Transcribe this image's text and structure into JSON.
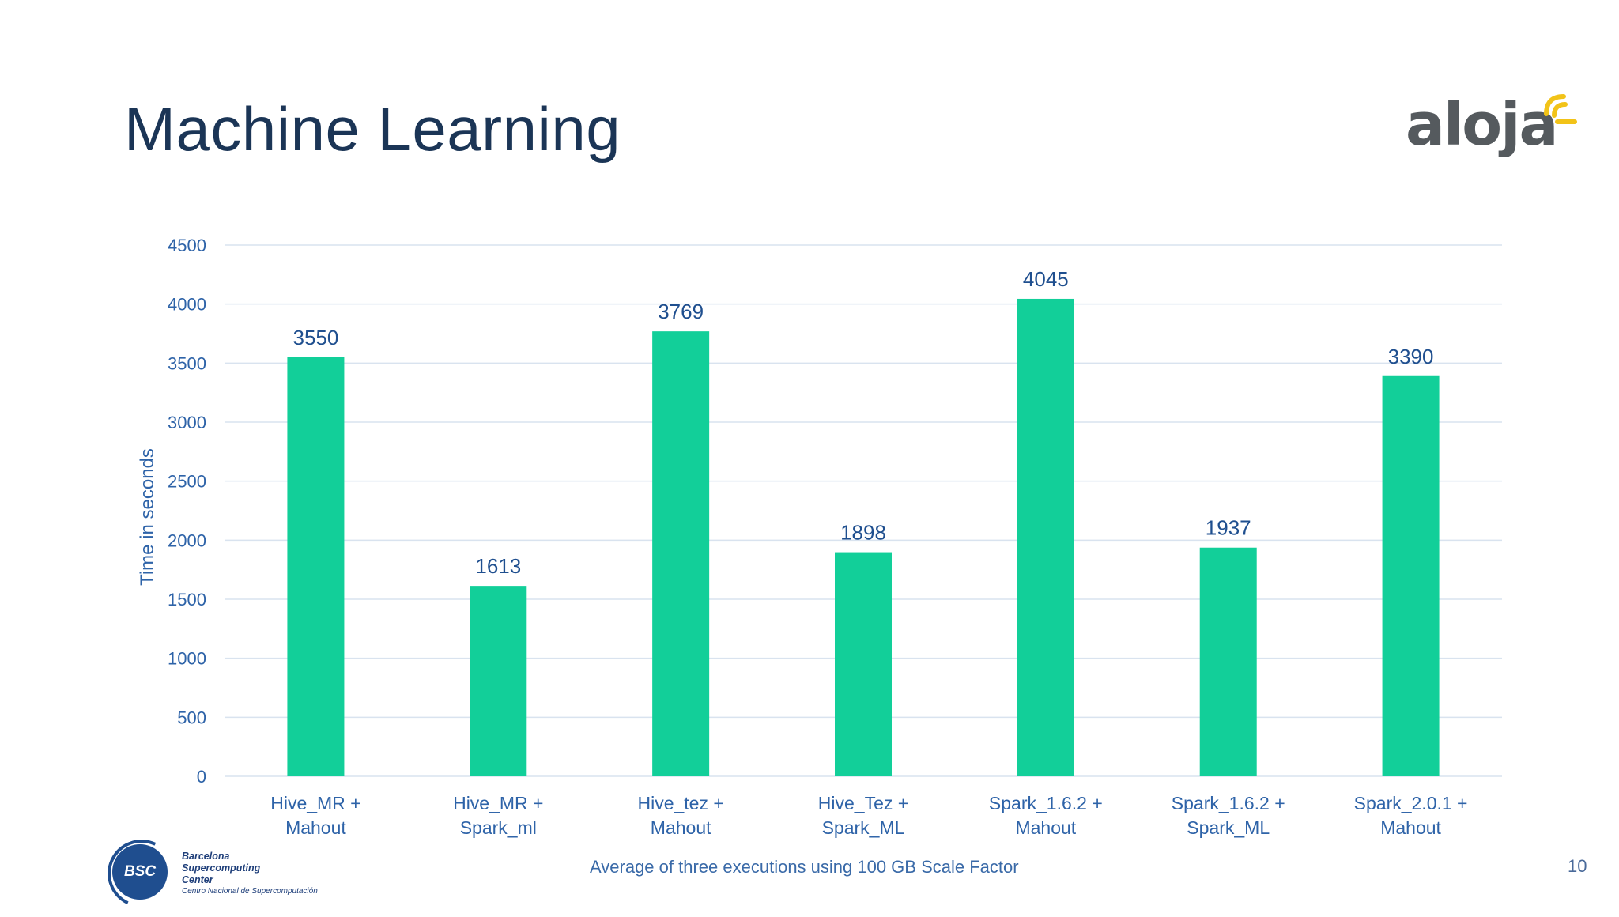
{
  "slide": {
    "title": "Machine Learning",
    "footnote": "Average of three executions using 100 GB Scale Factor",
    "page_number": "10"
  },
  "logos": {
    "aloja": "aloja",
    "bsc": {
      "circle_text": "BSC",
      "line1": "Barcelona",
      "line2": "Supercomputing",
      "line3": "Center",
      "line4": "Centro Nacional de Supercomputación"
    }
  },
  "colors": {
    "bar": "#12cf99",
    "axis_text": "#2e63a8",
    "label_text": "#1f4f8f",
    "grid": "#d9e3ef",
    "title": "#1b3556"
  },
  "chart_data": {
    "type": "bar",
    "title": "",
    "xlabel": "",
    "ylabel": "Time in seconds",
    "ylim": [
      0,
      4500
    ],
    "yticks": [
      0,
      500,
      1000,
      1500,
      2000,
      2500,
      3000,
      3500,
      4000,
      4500
    ],
    "grid": true,
    "categories": [
      [
        "Hive_MR +",
        "Mahout"
      ],
      [
        "Hive_MR +",
        "Spark_ml"
      ],
      [
        "Hive_tez +",
        "Mahout"
      ],
      [
        "Hive_Tez +",
        "Spark_ML"
      ],
      [
        "Spark_1.6.2 +",
        "Mahout"
      ],
      [
        "Spark_1.6.2 +",
        "Spark_ML"
      ],
      [
        "Spark_2.0.1  +",
        "Mahout"
      ]
    ],
    "values": [
      3550,
      1613,
      3769,
      1898,
      4045,
      1937,
      3390
    ]
  }
}
